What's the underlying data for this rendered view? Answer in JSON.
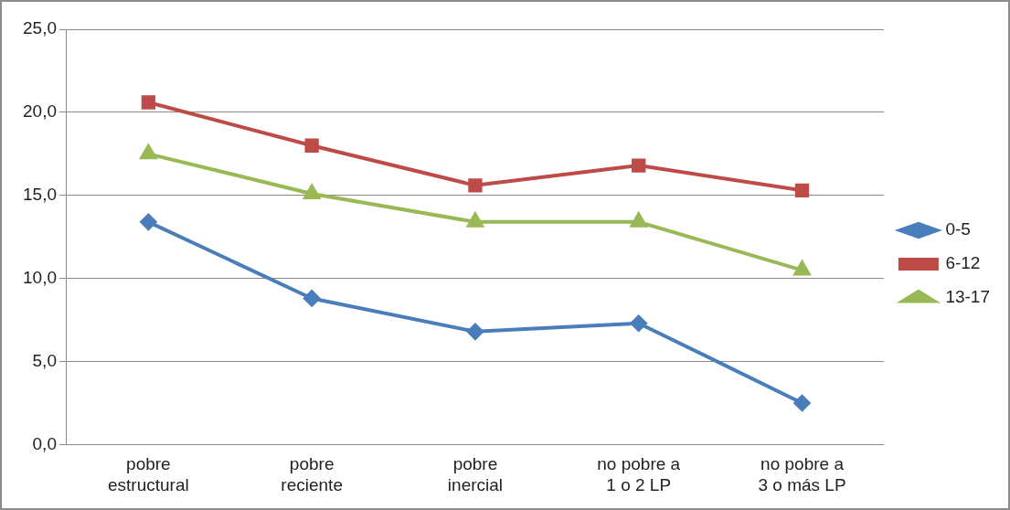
{
  "chart_data": {
    "type": "line",
    "categories": [
      "pobre\nestructural",
      "pobre\nreciente",
      "pobre\ninercial",
      "no pobre a\n1 o 2 LP",
      "no pobre a\n3 o más LP"
    ],
    "series": [
      {
        "name": "0-5",
        "color": "#4a7ebb",
        "marker": "diamond",
        "values": [
          13.4,
          8.8,
          6.8,
          7.3,
          2.5
        ]
      },
      {
        "name": "6-12",
        "color": "#be4b48",
        "marker": "square",
        "values": [
          20.6,
          18.0,
          15.6,
          16.8,
          15.3
        ]
      },
      {
        "name": "13-17",
        "color": "#98b954",
        "marker": "triangle",
        "values": [
          17.5,
          15.1,
          13.4,
          13.4,
          10.5
        ]
      }
    ],
    "ylim": [
      0,
      25
    ],
    "yticks": [
      {
        "value": 0,
        "label": "0,0"
      },
      {
        "value": 5,
        "label": "5,0"
      },
      {
        "value": 10,
        "label": "10,0"
      },
      {
        "value": 15,
        "label": "15,0"
      },
      {
        "value": 20,
        "label": "20,0"
      },
      {
        "value": 25,
        "label": "25,0"
      }
    ],
    "grid": "y",
    "legend": "right",
    "line_style": "solid"
  }
}
